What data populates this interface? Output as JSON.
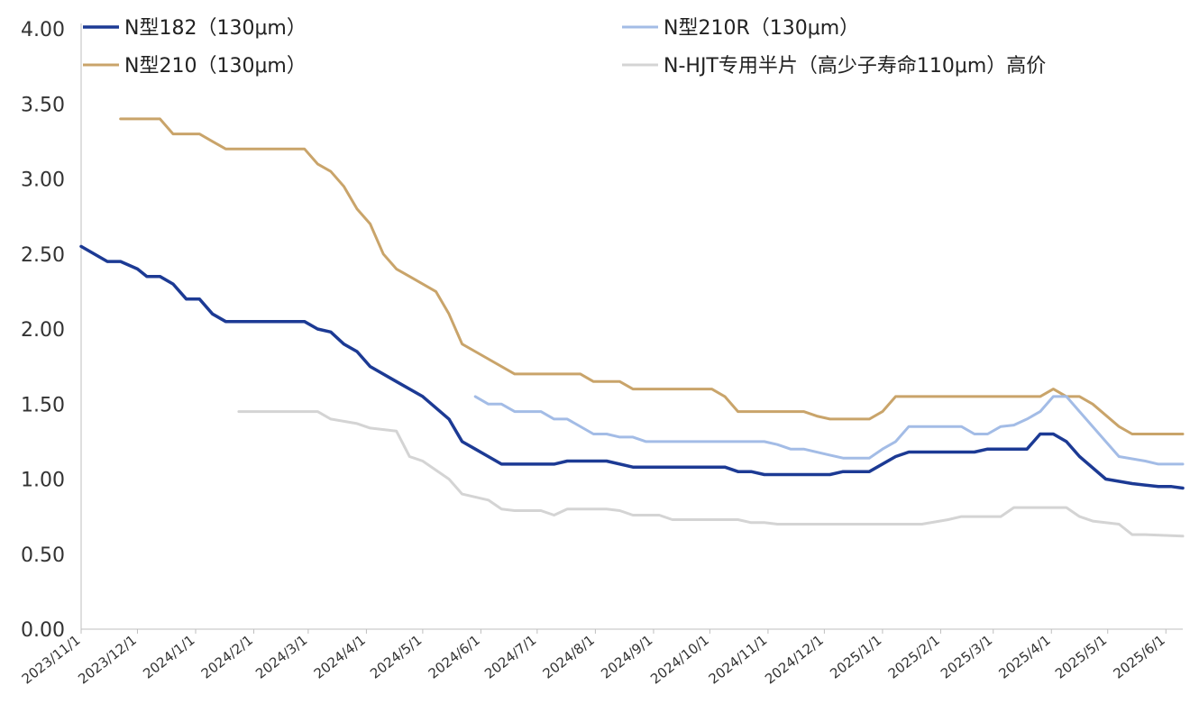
{
  "chart_data": {
    "type": "line",
    "title": "",
    "xlabel": "",
    "ylabel": "",
    "ylim": [
      0,
      4.0
    ],
    "yticks": [
      "0.00",
      "0.50",
      "1.00",
      "1.50",
      "2.00",
      "2.50",
      "3.00",
      "3.50",
      "4.00"
    ],
    "xlim": [
      "2023-11-01",
      "2025-06-10"
    ],
    "xticks": [
      "2023/11/1",
      "2023/12/1",
      "2024/1/1",
      "2024/2/1",
      "2024/3/1",
      "2024/4/1",
      "2024/5/1",
      "2024/6/1",
      "2024/7/1",
      "2024/8/1",
      "2024/9/1",
      "2024/10/1",
      "2024/11/1",
      "2024/12/1",
      "2025/1/1",
      "2025/2/1",
      "2025/3/1",
      "2025/4/1",
      "2025/5/1",
      "2025/6/1"
    ],
    "grid": false,
    "legend_position": "top",
    "series": [
      {
        "name": "N型182（130μm）",
        "color": "#1c3a94",
        "points": [
          [
            "2023-11-01",
            2.55
          ],
          [
            "2023-11-15",
            2.45
          ],
          [
            "2023-11-22",
            2.45
          ],
          [
            "2023-12-01",
            2.4
          ],
          [
            "2023-12-06",
            2.35
          ],
          [
            "2023-12-13",
            2.35
          ],
          [
            "2023-12-20",
            2.3
          ],
          [
            "2023-12-27",
            2.2
          ],
          [
            "2024-01-03",
            2.2
          ],
          [
            "2024-01-10",
            2.1
          ],
          [
            "2024-01-17",
            2.05
          ],
          [
            "2024-02-28",
            2.05
          ],
          [
            "2024-03-06",
            2.0
          ],
          [
            "2024-03-13",
            1.98
          ],
          [
            "2024-03-20",
            1.9
          ],
          [
            "2024-03-27",
            1.85
          ],
          [
            "2024-04-03",
            1.75
          ],
          [
            "2024-04-17",
            1.65
          ],
          [
            "2024-05-01",
            1.55
          ],
          [
            "2024-05-15",
            1.4
          ],
          [
            "2024-05-22",
            1.25
          ],
          [
            "2024-05-29",
            1.2
          ],
          [
            "2024-06-05",
            1.15
          ],
          [
            "2024-06-12",
            1.1
          ],
          [
            "2024-07-10",
            1.1
          ],
          [
            "2024-07-17",
            1.12
          ],
          [
            "2024-08-07",
            1.12
          ],
          [
            "2024-08-21",
            1.08
          ],
          [
            "2024-10-09",
            1.08
          ],
          [
            "2024-10-16",
            1.05
          ],
          [
            "2024-10-23",
            1.05
          ],
          [
            "2024-10-30",
            1.03
          ],
          [
            "2024-12-04",
            1.03
          ],
          [
            "2024-12-11",
            1.05
          ],
          [
            "2024-12-25",
            1.05
          ],
          [
            "2025-01-08",
            1.15
          ],
          [
            "2025-01-15",
            1.18
          ],
          [
            "2025-02-19",
            1.18
          ],
          [
            "2025-02-26",
            1.2
          ],
          [
            "2025-03-19",
            1.2
          ],
          [
            "2025-03-26",
            1.3
          ],
          [
            "2025-04-02",
            1.3
          ],
          [
            "2025-04-09",
            1.25
          ],
          [
            "2025-04-16",
            1.15
          ],
          [
            "2025-04-30",
            1.0
          ],
          [
            "2025-05-14",
            0.97
          ],
          [
            "2025-05-28",
            0.95
          ],
          [
            "2025-06-04",
            0.95
          ],
          [
            "2025-06-10",
            0.94
          ]
        ]
      },
      {
        "name": "N型210R（130μm）",
        "color": "#a3bce6",
        "points": [
          [
            "2024-05-29",
            1.55
          ],
          [
            "2024-06-05",
            1.5
          ],
          [
            "2024-06-12",
            1.5
          ],
          [
            "2024-06-19",
            1.45
          ],
          [
            "2024-07-03",
            1.45
          ],
          [
            "2024-07-10",
            1.4
          ],
          [
            "2024-07-17",
            1.4
          ],
          [
            "2024-07-31",
            1.3
          ],
          [
            "2024-08-07",
            1.3
          ],
          [
            "2024-08-14",
            1.28
          ],
          [
            "2024-08-21",
            1.28
          ],
          [
            "2024-08-28",
            1.25
          ],
          [
            "2024-10-30",
            1.25
          ],
          [
            "2024-11-06",
            1.23
          ],
          [
            "2024-11-13",
            1.2
          ],
          [
            "2024-11-20",
            1.2
          ],
          [
            "2024-12-04",
            1.16
          ],
          [
            "2024-12-11",
            1.14
          ],
          [
            "2024-12-25",
            1.14
          ],
          [
            "2025-01-01",
            1.2
          ],
          [
            "2025-01-08",
            1.25
          ],
          [
            "2025-01-15",
            1.35
          ],
          [
            "2025-02-12",
            1.35
          ],
          [
            "2025-02-19",
            1.3
          ],
          [
            "2025-02-26",
            1.3
          ],
          [
            "2025-03-05",
            1.35
          ],
          [
            "2025-03-12",
            1.36
          ],
          [
            "2025-03-19",
            1.4
          ],
          [
            "2025-03-26",
            1.45
          ],
          [
            "2025-04-02",
            1.55
          ],
          [
            "2025-04-09",
            1.55
          ],
          [
            "2025-04-16",
            1.45
          ],
          [
            "2025-04-30",
            1.25
          ],
          [
            "2025-05-07",
            1.15
          ],
          [
            "2025-05-21",
            1.12
          ],
          [
            "2025-05-28",
            1.1
          ],
          [
            "2025-06-10",
            1.1
          ]
        ]
      },
      {
        "name": "N型210（130μm）",
        "color": "#c9a46a",
        "points": [
          [
            "2023-11-22",
            3.4
          ],
          [
            "2023-12-06",
            3.4
          ],
          [
            "2023-12-13",
            3.4
          ],
          [
            "2023-12-20",
            3.3
          ],
          [
            "2024-01-03",
            3.3
          ],
          [
            "2024-01-10",
            3.25
          ],
          [
            "2024-01-17",
            3.2
          ],
          [
            "2024-02-28",
            3.2
          ],
          [
            "2024-03-06",
            3.1
          ],
          [
            "2024-03-13",
            3.05
          ],
          [
            "2024-03-20",
            2.95
          ],
          [
            "2024-03-27",
            2.8
          ],
          [
            "2024-04-03",
            2.7
          ],
          [
            "2024-04-10",
            2.5
          ],
          [
            "2024-04-17",
            2.4
          ],
          [
            "2024-04-24",
            2.35
          ],
          [
            "2024-05-08",
            2.25
          ],
          [
            "2024-05-15",
            2.1
          ],
          [
            "2024-05-22",
            1.9
          ],
          [
            "2024-05-29",
            1.85
          ],
          [
            "2024-06-19",
            1.7
          ],
          [
            "2024-07-24",
            1.7
          ],
          [
            "2024-07-31",
            1.65
          ],
          [
            "2024-08-14",
            1.65
          ],
          [
            "2024-08-21",
            1.6
          ],
          [
            "2024-10-02",
            1.6
          ],
          [
            "2024-10-09",
            1.55
          ],
          [
            "2024-10-16",
            1.45
          ],
          [
            "2024-11-20",
            1.45
          ],
          [
            "2024-11-27",
            1.42
          ],
          [
            "2024-12-04",
            1.4
          ],
          [
            "2024-12-25",
            1.4
          ],
          [
            "2025-01-01",
            1.45
          ],
          [
            "2025-01-08",
            1.55
          ],
          [
            "2025-03-26",
            1.55
          ],
          [
            "2025-04-02",
            1.6
          ],
          [
            "2025-04-09",
            1.55
          ],
          [
            "2025-04-16",
            1.55
          ],
          [
            "2025-04-23",
            1.5
          ],
          [
            "2025-05-07",
            1.35
          ],
          [
            "2025-05-14",
            1.3
          ],
          [
            "2025-06-10",
            1.3
          ]
        ]
      },
      {
        "name": "N-HJT专用半片（高少子寿命110μm）高价",
        "color": "#d4d4d4",
        "points": [
          [
            "2024-01-24",
            1.45
          ],
          [
            "2024-03-06",
            1.45
          ],
          [
            "2024-03-13",
            1.4
          ],
          [
            "2024-03-27",
            1.37
          ],
          [
            "2024-04-03",
            1.34
          ],
          [
            "2024-04-17",
            1.32
          ],
          [
            "2024-04-24",
            1.15
          ],
          [
            "2024-05-01",
            1.12
          ],
          [
            "2024-05-15",
            1.0
          ],
          [
            "2024-05-22",
            0.9
          ],
          [
            "2024-06-05",
            0.86
          ],
          [
            "2024-06-12",
            0.8
          ],
          [
            "2024-06-19",
            0.79
          ],
          [
            "2024-07-03",
            0.79
          ],
          [
            "2024-07-10",
            0.76
          ],
          [
            "2024-07-17",
            0.8
          ],
          [
            "2024-08-07",
            0.8
          ],
          [
            "2024-08-14",
            0.79
          ],
          [
            "2024-08-21",
            0.76
          ],
          [
            "2024-09-04",
            0.76
          ],
          [
            "2024-09-11",
            0.73
          ],
          [
            "2024-10-16",
            0.73
          ],
          [
            "2024-10-23",
            0.71
          ],
          [
            "2024-10-30",
            0.71
          ],
          [
            "2024-11-06",
            0.7
          ],
          [
            "2025-01-22",
            0.7
          ],
          [
            "2025-02-05",
            0.73
          ],
          [
            "2025-02-12",
            0.75
          ],
          [
            "2025-03-05",
            0.75
          ],
          [
            "2025-03-12",
            0.81
          ],
          [
            "2025-04-09",
            0.81
          ],
          [
            "2025-04-16",
            0.75
          ],
          [
            "2025-04-23",
            0.72
          ],
          [
            "2025-05-07",
            0.7
          ],
          [
            "2025-05-14",
            0.63
          ],
          [
            "2025-05-21",
            0.63
          ],
          [
            "2025-06-10",
            0.62
          ]
        ]
      }
    ]
  }
}
